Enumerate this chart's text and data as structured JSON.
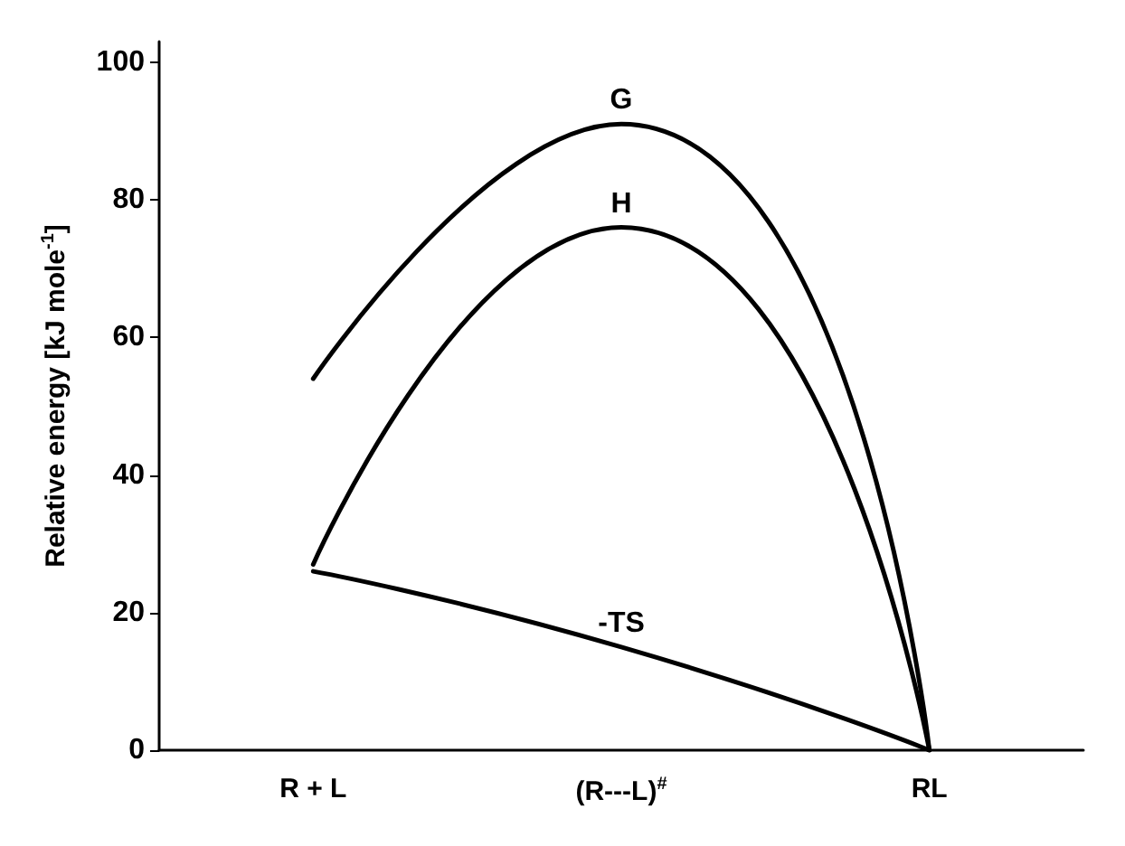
{
  "chart_data": {
    "type": "line",
    "ylabel": "Relative energy [kJ mole$^{-1}$]",
    "categories": [
      "R + L",
      "(R---L)$^{#}$",
      "RL"
    ],
    "series": [
      {
        "name": "G",
        "color": "#000000",
        "values": [
          54,
          91,
          0
        ]
      },
      {
        "name": "H",
        "color": "#000000",
        "values": [
          27,
          76,
          0
        ]
      },
      {
        "name": "-TS",
        "color": "#000000",
        "values": [
          26,
          15,
          0
        ]
      }
    ],
    "ylim": [
      0,
      103
    ],
    "yticks": [
      0,
      20,
      40,
      60,
      80,
      100
    ],
    "grid": false,
    "legend": false,
    "marker": "none",
    "line_style": "solid"
  }
}
